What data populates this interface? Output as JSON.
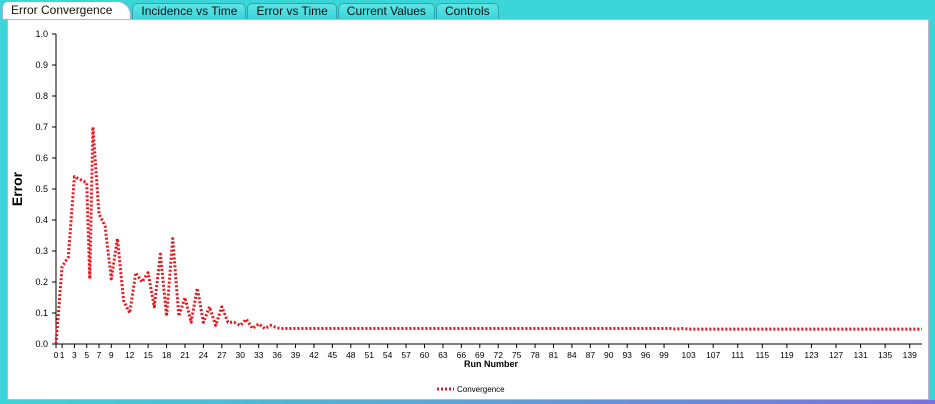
{
  "tabs": [
    {
      "label": "Error Convergence",
      "active": true
    },
    {
      "label": "Incidence vs Time",
      "active": false
    },
    {
      "label": "Error vs Time",
      "active": false
    },
    {
      "label": "Current Values",
      "active": false
    },
    {
      "label": "Controls",
      "active": false
    }
  ],
  "colors": {
    "series": "#e8141c",
    "tab_bar": "#3ad6d8"
  },
  "chart_data": {
    "type": "line",
    "title": "",
    "xlabel": "Run Number",
    "ylabel": "Error",
    "ylim": [
      0,
      1.0
    ],
    "xlim": [
      0,
      141
    ],
    "y_ticks": [
      "0.0",
      "0.1",
      "0.2",
      "0.3",
      "0.4",
      "0.5",
      "0.6",
      "0.7",
      "0.8",
      "0.9",
      "1.0"
    ],
    "x_ticks": [
      0,
      1,
      3,
      5,
      7,
      9,
      12,
      15,
      18,
      21,
      24,
      27,
      30,
      33,
      36,
      39,
      42,
      45,
      48,
      51,
      54,
      57,
      60,
      63,
      66,
      69,
      72,
      75,
      78,
      81,
      84,
      87,
      90,
      93,
      96,
      99,
      103,
      107,
      111,
      115,
      119,
      123,
      127,
      131,
      135,
      139
    ],
    "legend": "bottom-center",
    "series": [
      {
        "name": "Convergence",
        "x": [
          0,
          1,
          2,
          3,
          4,
          5,
          5.5,
          6,
          7,
          8,
          9,
          10,
          11,
          12,
          13,
          14,
          15,
          16,
          17,
          18,
          19,
          20,
          21,
          22,
          23,
          24,
          25,
          26,
          27,
          28,
          29,
          30,
          31,
          32,
          33,
          34,
          35,
          36,
          37,
          40,
          50,
          60,
          70,
          80,
          90,
          100,
          101,
          102,
          103,
          110,
          120,
          130,
          141
        ],
        "y": [
          0,
          0.25,
          0.28,
          0.54,
          0.53,
          0.52,
          0.21,
          0.7,
          0.42,
          0.38,
          0.21,
          0.34,
          0.14,
          0.1,
          0.23,
          0.2,
          0.23,
          0.12,
          0.29,
          0.09,
          0.34,
          0.09,
          0.15,
          0.07,
          0.18,
          0.07,
          0.12,
          0.06,
          0.12,
          0.07,
          0.07,
          0.06,
          0.08,
          0.05,
          0.065,
          0.05,
          0.06,
          0.052,
          0.05,
          0.05,
          0.05,
          0.05,
          0.05,
          0.05,
          0.05,
          0.05,
          0.048,
          0.05,
          0.048,
          0.048,
          0.048,
          0.048,
          0.048
        ]
      }
    ]
  }
}
